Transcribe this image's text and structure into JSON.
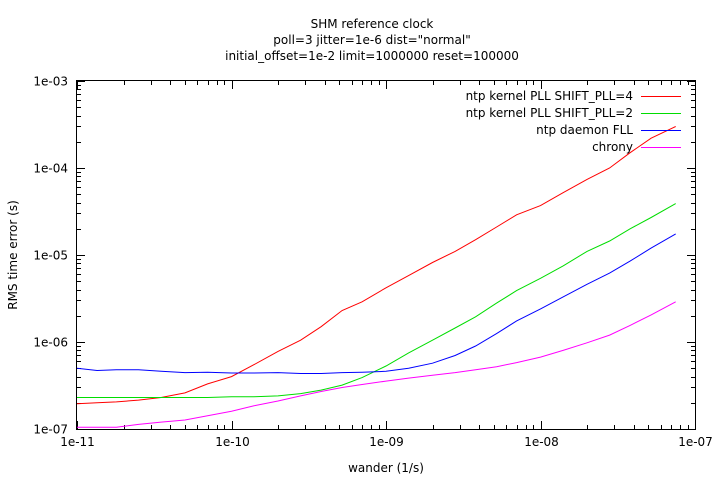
{
  "chart_data": {
    "type": "line",
    "title_lines": [
      "SHM reference clock",
      "poll=3 jitter=1e-6 dist=\"normal\"",
      "initial_offset=1e-2 limit=1000000 reset=100000"
    ],
    "xlabel": "wander (1/s)",
    "ylabel": "RMS time error (s)",
    "x_scale": "log",
    "y_scale": "log",
    "xlim": [
      1e-11,
      1e-07
    ],
    "ylim": [
      1e-07,
      0.001
    ],
    "x_ticks": [
      {
        "value": 1e-11,
        "label": "1e-11"
      },
      {
        "value": 1e-10,
        "label": "1e-10"
      },
      {
        "value": 1e-09,
        "label": "1e-09"
      },
      {
        "value": 1e-08,
        "label": "1e-08"
      },
      {
        "value": 1e-07,
        "label": "1e-07"
      }
    ],
    "y_ticks": [
      {
        "value": 1e-07,
        "label": "1e-07"
      },
      {
        "value": 1e-06,
        "label": "1e-06"
      },
      {
        "value": 1e-05,
        "label": "1e-05"
      },
      {
        "value": 0.0001,
        "label": "1e-04"
      },
      {
        "value": 0.001,
        "label": "1e-03"
      }
    ],
    "grid": false,
    "legend_position": "top-right",
    "x": [
      1e-11,
      1.35e-11,
      1.8e-11,
      2.5e-11,
      3.5e-11,
      5e-11,
      7e-11,
      1e-10,
      1.4e-10,
      2e-10,
      2.8e-10,
      3.8e-10,
      5.2e-10,
      7e-10,
      1e-09,
      1.4e-09,
      2e-09,
      2.8e-09,
      3.8e-09,
      5.2e-09,
      7e-09,
      1e-08,
      1.4e-08,
      2e-08,
      2.8e-08,
      3.8e-08,
      5.2e-08,
      7.5e-08
    ],
    "series": [
      {
        "name": "ntp kernel PLL SHIFT_PLL=4",
        "color": "#ff0000",
        "values": [
          1.95e-07,
          2e-07,
          2.05e-07,
          2.15e-07,
          2.3e-07,
          2.6e-07,
          3.3e-07,
          4e-07,
          5.5e-07,
          7.8e-07,
          1.05e-06,
          1.5e-06,
          2.3e-06,
          2.9e-06,
          4.2e-06,
          5.8e-06,
          8.2e-06,
          1.1e-05,
          1.5e-05,
          2.1e-05,
          2.9e-05,
          3.7e-05,
          5.2e-05,
          7.4e-05,
          0.0001,
          0.00015,
          0.00022,
          0.0003
        ]
      },
      {
        "name": "ntp kernel PLL SHIFT_PLL=2",
        "color": "#00dd00",
        "values": [
          2.3e-07,
          2.3e-07,
          2.3e-07,
          2.3e-07,
          2.3e-07,
          2.3e-07,
          2.3e-07,
          2.35e-07,
          2.35e-07,
          2.4e-07,
          2.55e-07,
          2.8e-07,
          3.2e-07,
          3.9e-07,
          5.3e-07,
          7.5e-07,
          1.05e-06,
          1.45e-06,
          1.95e-06,
          2.8e-06,
          3.9e-06,
          5.4e-06,
          7.5e-06,
          1.1e-05,
          1.45e-05,
          2e-05,
          2.7e-05,
          3.9e-05
        ]
      },
      {
        "name": "ntp daemon FLL",
        "color": "#0000ff",
        "values": [
          5e-07,
          4.7e-07,
          4.8e-07,
          4.8e-07,
          4.6e-07,
          4.45e-07,
          4.5e-07,
          4.4e-07,
          4.4e-07,
          4.45e-07,
          4.35e-07,
          4.35e-07,
          4.45e-07,
          4.5e-07,
          4.6e-07,
          5e-07,
          5.7e-07,
          7e-07,
          9e-07,
          1.25e-06,
          1.75e-06,
          2.4e-06,
          3.3e-06,
          4.6e-06,
          6.2e-06,
          8.5e-06,
          1.2e-05,
          1.75e-05
        ]
      },
      {
        "name": "chrony",
        "color": "#ff00ff",
        "values": [
          1.05e-07,
          1.05e-07,
          1.05e-07,
          1.13e-07,
          1.2e-07,
          1.27e-07,
          1.42e-07,
          1.6e-07,
          1.85e-07,
          2.1e-07,
          2.4e-07,
          2.7e-07,
          3e-07,
          3.25e-07,
          3.55e-07,
          3.85e-07,
          4.15e-07,
          4.45e-07,
          4.8e-07,
          5.2e-07,
          5.8e-07,
          6.7e-07,
          8e-07,
          9.8e-07,
          1.2e-06,
          1.55e-06,
          2.05e-06,
          2.9e-06
        ]
      }
    ]
  }
}
